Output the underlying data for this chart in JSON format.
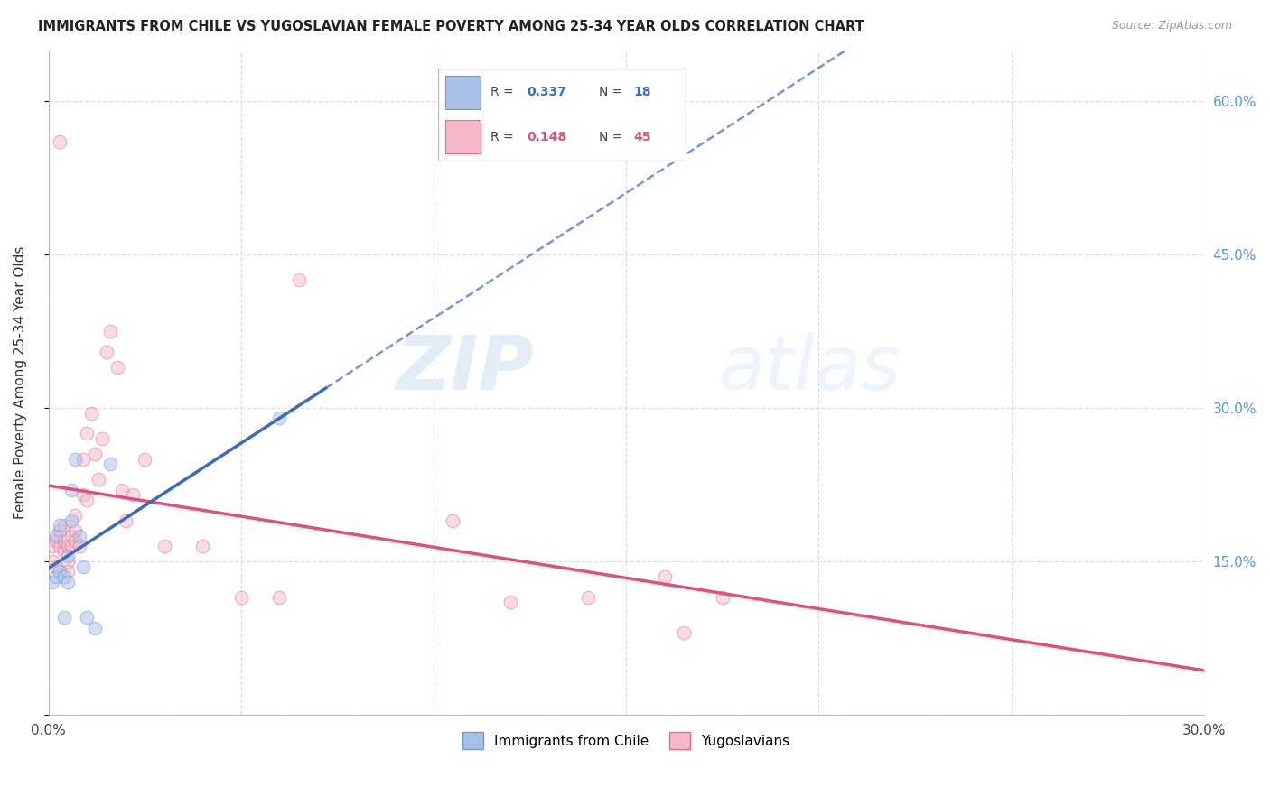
{
  "title": "IMMIGRANTS FROM CHILE VS YUGOSLAVIAN FEMALE POVERTY AMONG 25-34 YEAR OLDS CORRELATION CHART",
  "source": "Source: ZipAtlas.com",
  "ylabel": "Female Poverty Among 25-34 Year Olds",
  "xmin": 0.0,
  "xmax": 0.3,
  "ymin": 0.0,
  "ymax": 0.65,
  "x_ticks": [
    0.0,
    0.05,
    0.1,
    0.15,
    0.2,
    0.25,
    0.3
  ],
  "y_ticks": [
    0.0,
    0.15,
    0.3,
    0.45,
    0.6
  ],
  "chile_color": "#AABFE8",
  "chile_edge_color": "#7099CC",
  "yugo_color": "#F5B8C8",
  "yugo_edge_color": "#E07090",
  "chile_line_color": "#3A6BC4",
  "yugo_line_color": "#E0507A",
  "R_chile": 0.337,
  "N_chile": 18,
  "R_yugo": 0.148,
  "N_yugo": 45,
  "chile_x": [
    0.001,
    0.002,
    0.002,
    0.003,
    0.003,
    0.004,
    0.004,
    0.005,
    0.005,
    0.006,
    0.006,
    0.007,
    0.008,
    0.009,
    0.01,
    0.012,
    0.016,
    0.06
  ],
  "chile_y": [
    0.13,
    0.135,
    0.175,
    0.14,
    0.185,
    0.135,
    0.095,
    0.155,
    0.13,
    0.19,
    0.22,
    0.25,
    0.175,
    0.145,
    0.095,
    0.085,
    0.245,
    0.29
  ],
  "yugo_x": [
    0.001,
    0.001,
    0.002,
    0.002,
    0.003,
    0.003,
    0.003,
    0.004,
    0.004,
    0.004,
    0.005,
    0.005,
    0.005,
    0.006,
    0.006,
    0.007,
    0.007,
    0.007,
    0.008,
    0.009,
    0.009,
    0.01,
    0.01,
    0.011,
    0.012,
    0.013,
    0.014,
    0.015,
    0.016,
    0.018,
    0.019,
    0.02,
    0.022,
    0.025,
    0.03,
    0.04,
    0.05,
    0.06,
    0.065,
    0.105,
    0.12,
    0.14,
    0.16,
    0.165,
    0.175
  ],
  "yugo_y": [
    0.165,
    0.15,
    0.17,
    0.145,
    0.18,
    0.165,
    0.56,
    0.16,
    0.185,
    0.17,
    0.165,
    0.15,
    0.14,
    0.175,
    0.165,
    0.18,
    0.195,
    0.17,
    0.165,
    0.215,
    0.25,
    0.21,
    0.275,
    0.295,
    0.255,
    0.23,
    0.27,
    0.355,
    0.375,
    0.34,
    0.22,
    0.19,
    0.215,
    0.25,
    0.165,
    0.165,
    0.115,
    0.115,
    0.425,
    0.19,
    0.11,
    0.115,
    0.135,
    0.08,
    0.115
  ],
  "watermark_zip": "ZIP",
  "watermark_atlas": "atlas",
  "background_color": "#FFFFFF",
  "grid_color": "#DDDDDD",
  "marker_size": 110,
  "alpha_scatter": 0.5
}
